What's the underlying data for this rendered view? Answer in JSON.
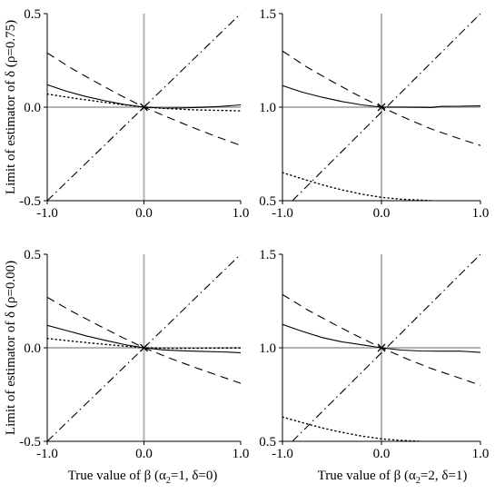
{
  "figure": {
    "ylabel_top": "Limit of estimator of δ (ρ=0.75)",
    "ylabel_bottom": "Limit of estimator of δ (ρ=0.00)",
    "xlabel_left": "True value of β (α2=1, δ=0)",
    "xlabel_right": "True value of β (α2=2, δ=1)",
    "xlabel_left_parts": {
      "pre": "True value of β (α",
      "sub": "2",
      "post": "=1, δ=0)"
    },
    "xlabel_right_parts": {
      "pre": "True value of β (α",
      "sub": "2",
      "post": "=2, δ=1)"
    },
    "reference_line_color": "#b3b3b3",
    "curve_color": "#000000"
  },
  "chart_data": [
    {
      "id": "top-left",
      "type": "line",
      "xlim": [
        -1.0,
        1.0
      ],
      "ylim": [
        -0.5,
        0.5
      ],
      "x_ticks": [
        "-1.0",
        "0.0",
        "1.0"
      ],
      "y_ticks": [
        "-0.5",
        "0.0",
        "0.5"
      ],
      "reference": {
        "x": 0.0,
        "y": 0.0
      },
      "series": [
        {
          "style": "solid",
          "points": [
            [
              -1.0,
              0.12
            ],
            [
              -0.8,
              0.085
            ],
            [
              -0.6,
              0.057
            ],
            [
              -0.4,
              0.034
            ],
            [
              -0.2,
              0.014
            ],
            [
              0.0,
              0.0
            ],
            [
              0.2,
              -0.005
            ],
            [
              0.4,
              -0.004
            ],
            [
              0.6,
              -0.001
            ],
            [
              0.8,
              0.004
            ],
            [
              1.0,
              0.012
            ]
          ]
        },
        {
          "style": "dashed",
          "points": [
            [
              -1.0,
              0.29
            ],
            [
              -0.75,
              0.208
            ],
            [
              -0.5,
              0.135
            ],
            [
              -0.25,
              0.065
            ],
            [
              0.0,
              0.0
            ],
            [
              0.25,
              -0.055
            ],
            [
              0.5,
              -0.108
            ],
            [
              0.75,
              -0.158
            ],
            [
              1.0,
              -0.205
            ]
          ]
        },
        {
          "style": "dotted",
          "points": [
            [
              -1.0,
              0.07
            ],
            [
              -0.75,
              0.05
            ],
            [
              -0.5,
              0.032
            ],
            [
              -0.25,
              0.015
            ],
            [
              0.0,
              0.0
            ],
            [
              0.25,
              -0.008
            ],
            [
              0.5,
              -0.014
            ],
            [
              0.75,
              -0.017
            ],
            [
              1.0,
              -0.02
            ]
          ]
        },
        {
          "style": "dashdot",
          "points": [
            [
              -1.0,
              -0.5
            ],
            [
              1.0,
              0.5
            ]
          ]
        }
      ]
    },
    {
      "id": "top-right",
      "type": "line",
      "xlim": [
        -1.0,
        1.0
      ],
      "ylim": [
        0.5,
        1.5
      ],
      "x_ticks": [
        "-1.0",
        "0.0",
        "1.0"
      ],
      "y_ticks": [
        "0.5",
        "1.0",
        "1.5"
      ],
      "reference": {
        "x": 0.0,
        "y": 1.0
      },
      "series": [
        {
          "style": "solid",
          "points": [
            [
              -1.0,
              1.115
            ],
            [
              -0.8,
              1.08
            ],
            [
              -0.6,
              1.053
            ],
            [
              -0.4,
              1.03
            ],
            [
              -0.2,
              1.012
            ],
            [
              0.0,
              1.0
            ],
            [
              0.2,
              1.0
            ],
            [
              0.4,
              0.999
            ],
            [
              0.5,
              0.998
            ],
            [
              0.6,
              1.004
            ],
            [
              0.8,
              1.005
            ],
            [
              1.0,
              1.007
            ]
          ]
        },
        {
          "style": "dashed",
          "points": [
            [
              -1.0,
              1.3
            ],
            [
              -0.75,
              1.213
            ],
            [
              -0.5,
              1.138
            ],
            [
              -0.25,
              1.066
            ],
            [
              0.0,
              1.0
            ],
            [
              0.25,
              0.94
            ],
            [
              0.5,
              0.884
            ],
            [
              0.75,
              0.838
            ],
            [
              1.0,
              0.795
            ]
          ]
        },
        {
          "style": "dotted",
          "points": [
            [
              -1.0,
              0.65
            ],
            [
              -0.8,
              0.617
            ],
            [
              -0.6,
              0.585
            ],
            [
              -0.4,
              0.558
            ],
            [
              -0.2,
              0.535
            ],
            [
              0.0,
              0.518
            ],
            [
              0.2,
              0.508
            ],
            [
              0.4,
              0.503
            ],
            [
              0.5,
              0.5
            ]
          ]
        },
        {
          "style": "dashdot",
          "points": [
            [
              -0.9,
              0.5
            ],
            [
              1.0,
              1.5
            ]
          ]
        }
      ]
    },
    {
      "id": "bottom-left",
      "type": "line",
      "xlim": [
        -1.0,
        1.0
      ],
      "ylim": [
        -0.5,
        0.5
      ],
      "x_ticks": [
        "-1.0",
        "0.0",
        "1.0"
      ],
      "y_ticks": [
        "-0.5",
        "0.0",
        "0.5"
      ],
      "reference": {
        "x": 0.0,
        "y": 0.0
      },
      "series": [
        {
          "style": "solid",
          "points": [
            [
              -1.0,
              0.12
            ],
            [
              -0.8,
              0.092
            ],
            [
              -0.6,
              0.064
            ],
            [
              -0.4,
              0.04
            ],
            [
              -0.2,
              0.017
            ],
            [
              0.0,
              0.0
            ],
            [
              0.2,
              -0.011
            ],
            [
              0.4,
              -0.016
            ],
            [
              0.6,
              -0.019
            ],
            [
              0.8,
              -0.022
            ],
            [
              1.0,
              -0.026
            ]
          ]
        },
        {
          "style": "dashed",
          "points": [
            [
              -1.0,
              0.27
            ],
            [
              -0.75,
              0.196
            ],
            [
              -0.5,
              0.128
            ],
            [
              -0.25,
              0.062
            ],
            [
              0.0,
              0.0
            ],
            [
              0.25,
              -0.052
            ],
            [
              0.5,
              -0.1
            ],
            [
              0.75,
              -0.145
            ],
            [
              1.0,
              -0.19
            ]
          ]
        },
        {
          "style": "dotted",
          "points": [
            [
              -1.0,
              0.05
            ],
            [
              -0.75,
              0.036
            ],
            [
              -0.5,
              0.023
            ],
            [
              -0.25,
              0.011
            ],
            [
              0.0,
              0.0
            ],
            [
              0.25,
              -0.003
            ],
            [
              0.5,
              -0.003
            ],
            [
              0.75,
              -0.002
            ],
            [
              1.0,
              -0.001
            ]
          ]
        },
        {
          "style": "dashdot",
          "points": [
            [
              -1.0,
              -0.5
            ],
            [
              1.0,
              0.5
            ]
          ]
        }
      ]
    },
    {
      "id": "bottom-right",
      "type": "line",
      "xlim": [
        -1.0,
        1.0
      ],
      "ylim": [
        0.5,
        1.5
      ],
      "x_ticks": [
        "-1.0",
        "0.0",
        "1.0"
      ],
      "y_ticks": [
        "0.5",
        "1.0",
        "1.5"
      ],
      "reference": {
        "x": 0.0,
        "y": 1.0
      },
      "series": [
        {
          "style": "solid",
          "points": [
            [
              -1.0,
              1.125
            ],
            [
              -0.8,
              1.088
            ],
            [
              -0.6,
              1.055
            ],
            [
              -0.4,
              1.032
            ],
            [
              -0.2,
              1.016
            ],
            [
              0.0,
              1.0
            ],
            [
              0.2,
              0.988
            ],
            [
              0.4,
              0.983
            ],
            [
              0.6,
              0.982
            ],
            [
              0.8,
              0.982
            ],
            [
              1.0,
              0.975
            ]
          ]
        },
        {
          "style": "dashed",
          "points": [
            [
              -1.0,
              1.285
            ],
            [
              -0.75,
              1.204
            ],
            [
              -0.5,
              1.132
            ],
            [
              -0.25,
              1.064
            ],
            [
              0.0,
              1.0
            ],
            [
              0.25,
              0.942
            ],
            [
              0.5,
              0.89
            ],
            [
              0.75,
              0.845
            ],
            [
              1.0,
              0.8
            ]
          ]
        },
        {
          "style": "dotted",
          "points": [
            [
              -1.0,
              0.63
            ],
            [
              -0.8,
              0.6
            ],
            [
              -0.6,
              0.572
            ],
            [
              -0.4,
              0.548
            ],
            [
              -0.2,
              0.528
            ],
            [
              0.0,
              0.513
            ],
            [
              0.2,
              0.505
            ],
            [
              0.4,
              0.5
            ]
          ]
        },
        {
          "style": "dashdot",
          "points": [
            [
              -0.9,
              0.5
            ],
            [
              1.0,
              1.5
            ]
          ]
        }
      ]
    }
  ]
}
